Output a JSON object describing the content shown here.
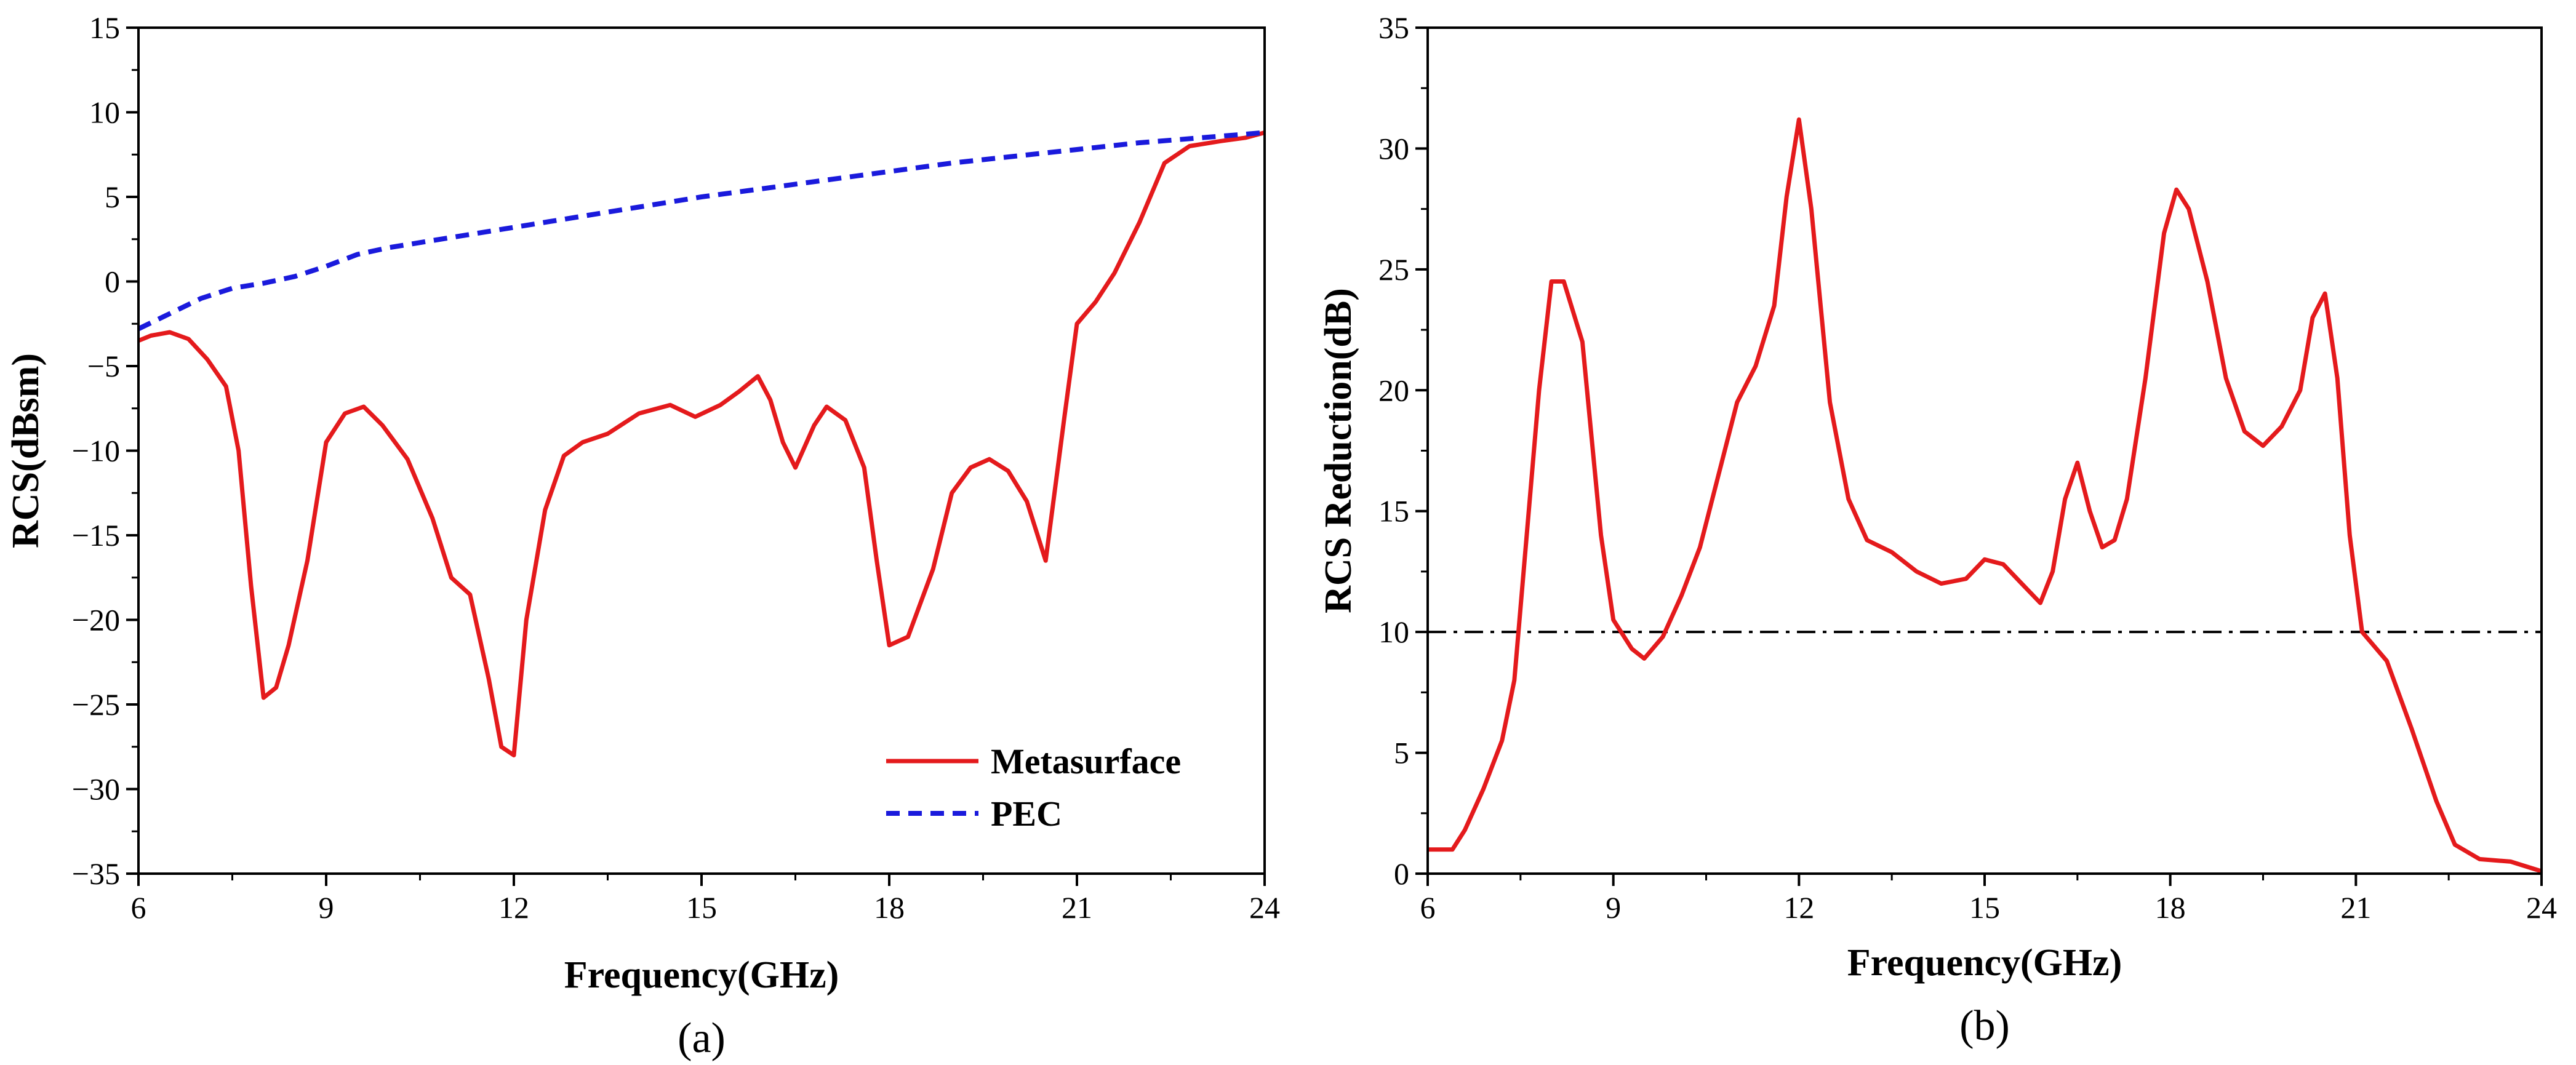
{
  "chart_data": [
    {
      "type": "line",
      "panel_label": "(a)",
      "xlabel": "Frequency(GHz)",
      "ylabel": "RCS(dBsm)",
      "xlim": [
        6,
        24
      ],
      "ylim": [
        -35,
        15
      ],
      "xticks": [
        6,
        9,
        12,
        15,
        18,
        21,
        24
      ],
      "yticks": [
        15,
        10,
        5,
        0,
        -5,
        -10,
        -15,
        -20,
        -25,
        -30,
        -35
      ],
      "ytick_labels": [
        "15",
        "10",
        "5",
        "0",
        "−5",
        "−10",
        "−15",
        "−20",
        "−25",
        "−30",
        "−35"
      ],
      "legend_position": "lower-right",
      "series": [
        {
          "name": "Metasurface",
          "color": "#e41a1c",
          "style": "solid",
          "x": [
            6.0,
            6.2,
            6.5,
            6.8,
            7.1,
            7.4,
            7.6,
            7.8,
            8.0,
            8.2,
            8.4,
            8.7,
            9.0,
            9.3,
            9.6,
            9.9,
            10.3,
            10.7,
            11.0,
            11.3,
            11.6,
            11.8,
            12.0,
            12.2,
            12.5,
            12.8,
            13.1,
            13.5,
            14.0,
            14.5,
            14.9,
            15.3,
            15.6,
            15.9,
            16.1,
            16.3,
            16.5,
            16.8,
            17.0,
            17.3,
            17.6,
            17.8,
            18.0,
            18.3,
            18.7,
            19.0,
            19.3,
            19.6,
            19.9,
            20.2,
            20.5,
            20.8,
            21.0,
            21.3,
            21.6,
            22.0,
            22.4,
            22.8,
            23.3,
            23.7,
            24.0
          ],
          "y": [
            -3.5,
            -3.2,
            -3.0,
            -3.4,
            -4.6,
            -6.2,
            -10.0,
            -18.0,
            -24.6,
            -24.0,
            -21.5,
            -16.5,
            -9.5,
            -7.8,
            -7.4,
            -8.5,
            -10.5,
            -14.0,
            -17.5,
            -18.5,
            -23.5,
            -27.5,
            -28.0,
            -20.0,
            -13.5,
            -10.3,
            -9.5,
            -9.0,
            -7.8,
            -7.3,
            -8.0,
            -7.3,
            -6.5,
            -5.6,
            -7.0,
            -9.5,
            -11.0,
            -8.5,
            -7.4,
            -8.2,
            -11.0,
            -16.5,
            -21.5,
            -21.0,
            -17.0,
            -12.5,
            -11.0,
            -10.5,
            -11.2,
            -13.0,
            -16.5,
            -8.0,
            -2.5,
            -1.2,
            0.5,
            3.5,
            7.0,
            8.0,
            8.3,
            8.5,
            8.8
          ]
        },
        {
          "name": "PEC",
          "color": "#1a1adc",
          "style": "dashed",
          "x": [
            6.0,
            6.5,
            7.0,
            7.5,
            8.0,
            8.5,
            9.0,
            9.5,
            10.0,
            11.0,
            12.0,
            13.0,
            14.0,
            15.0,
            16.0,
            17.0,
            18.0,
            19.0,
            20.0,
            21.0,
            22.0,
            23.0,
            24.0
          ],
          "y": [
            -2.8,
            -1.9,
            -1.0,
            -0.4,
            -0.1,
            0.3,
            0.9,
            1.6,
            2.0,
            2.6,
            3.2,
            3.8,
            4.4,
            5.0,
            5.5,
            6.0,
            6.5,
            7.0,
            7.4,
            7.8,
            8.2,
            8.5,
            8.8
          ]
        }
      ]
    },
    {
      "type": "line",
      "panel_label": "(b)",
      "xlabel": "Frequency(GHz)",
      "ylabel": "RCS Reduction(dB)",
      "xlim": [
        6,
        24
      ],
      "ylim": [
        0,
        35
      ],
      "xticks": [
        6,
        9,
        12,
        15,
        18,
        21,
        24
      ],
      "yticks": [
        0,
        5,
        10,
        15,
        20,
        25,
        30,
        35
      ],
      "ytick_labels": [
        "0",
        "5",
        "10",
        "15",
        "20",
        "25",
        "30",
        "35"
      ],
      "reference_line": {
        "y": 10,
        "style": "dash-dot",
        "color": "#000000"
      },
      "series": [
        {
          "name": "RCS Reduction",
          "color": "#e41a1c",
          "style": "solid",
          "x": [
            6.0,
            6.2,
            6.4,
            6.6,
            6.9,
            7.2,
            7.4,
            7.6,
            7.8,
            8.0,
            8.2,
            8.5,
            8.8,
            9.0,
            9.3,
            9.5,
            9.8,
            10.1,
            10.4,
            10.7,
            11.0,
            11.3,
            11.6,
            11.8,
            12.0,
            12.2,
            12.5,
            12.8,
            13.1,
            13.5,
            13.9,
            14.3,
            14.7,
            15.0,
            15.3,
            15.6,
            15.9,
            16.1,
            16.3,
            16.5,
            16.7,
            16.9,
            17.1,
            17.3,
            17.6,
            17.9,
            18.1,
            18.3,
            18.6,
            18.9,
            19.2,
            19.5,
            19.8,
            20.1,
            20.3,
            20.5,
            20.7,
            20.9,
            21.1,
            21.5,
            21.9,
            22.3,
            22.6,
            23.0,
            23.5,
            24.0
          ],
          "y": [
            1.0,
            1.0,
            1.0,
            1.8,
            3.5,
            5.5,
            8.0,
            14.0,
            20.0,
            24.5,
            24.5,
            22.0,
            14.0,
            10.5,
            9.3,
            8.9,
            9.8,
            11.5,
            13.5,
            16.5,
            19.5,
            21.0,
            23.5,
            28.0,
            31.2,
            27.5,
            19.5,
            15.5,
            13.8,
            13.3,
            12.5,
            12.0,
            12.2,
            13.0,
            12.8,
            12.0,
            11.2,
            12.5,
            15.5,
            17.0,
            15.0,
            13.5,
            13.8,
            15.5,
            20.5,
            26.5,
            28.3,
            27.5,
            24.5,
            20.5,
            18.3,
            17.7,
            18.5,
            20.0,
            23.0,
            24.0,
            20.5,
            14.0,
            10.0,
            8.8,
            6.0,
            3.0,
            1.2,
            0.6,
            0.5,
            0.1
          ]
        }
      ]
    }
  ]
}
